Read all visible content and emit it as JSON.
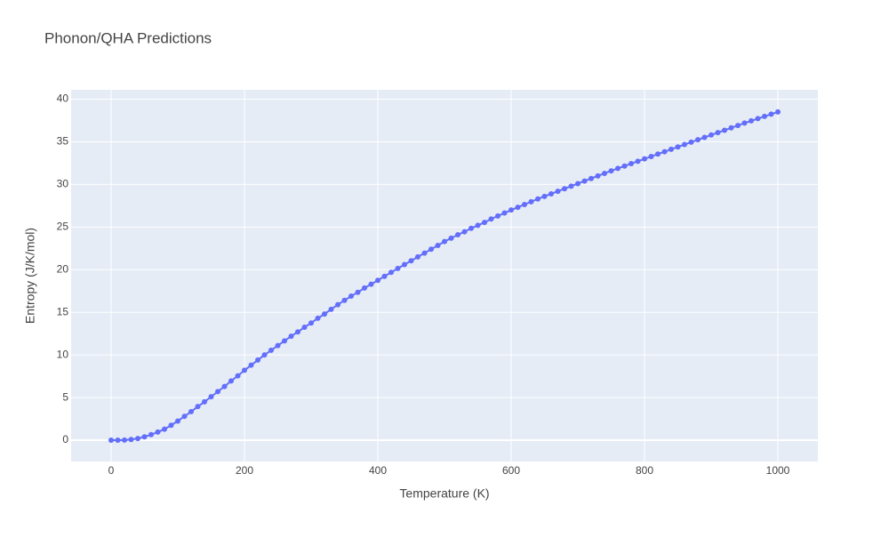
{
  "chart_data": {
    "type": "line",
    "title": "Phonon/QHA Predictions",
    "x_label": "Temperature (K)",
    "y_label": "Entropy (J/K/mol)",
    "x": [
      0,
      10,
      20,
      30,
      40,
      50,
      60,
      70,
      80,
      90,
      100,
      110,
      120,
      130,
      140,
      150,
      160,
      170,
      180,
      190,
      200,
      210,
      220,
      230,
      240,
      250,
      260,
      270,
      280,
      290,
      300,
      310,
      320,
      330,
      340,
      350,
      360,
      370,
      380,
      390,
      400,
      410,
      420,
      430,
      440,
      450,
      460,
      470,
      480,
      490,
      500,
      510,
      520,
      530,
      540,
      550,
      560,
      570,
      580,
      590,
      600,
      610,
      620,
      630,
      640,
      650,
      660,
      670,
      680,
      690,
      700,
      710,
      720,
      730,
      740,
      750,
      760,
      770,
      780,
      790,
      800,
      810,
      820,
      830,
      840,
      850,
      860,
      870,
      880,
      890,
      900,
      910,
      920,
      930,
      940,
      950,
      960,
      970,
      980,
      990,
      1000
    ],
    "series": [
      {
        "name": "Entropy",
        "color": "#636efa",
        "values": [
          0,
          0,
          0.02,
          0.08,
          0.2,
          0.4,
          0.65,
          0.95,
          1.3,
          1.75,
          2.25,
          2.8,
          3.35,
          3.95,
          4.5,
          5.1,
          5.7,
          6.3,
          6.95,
          7.55,
          8.2,
          8.8,
          9.4,
          10.0,
          10.55,
          11.1,
          11.65,
          12.2,
          12.7,
          13.25,
          13.75,
          14.3,
          14.8,
          15.35,
          15.9,
          16.4,
          16.9,
          17.35,
          17.85,
          18.3,
          18.75,
          19.22,
          19.69,
          20.15,
          20.6,
          21.05,
          21.5,
          21.95,
          22.4,
          22.85,
          23.3,
          23.7,
          24.1,
          24.45,
          24.85,
          25.2,
          25.55,
          25.95,
          26.3,
          26.65,
          27.0,
          27.32,
          27.65,
          27.97,
          28.3,
          28.6,
          28.9,
          29.2,
          29.5,
          29.8,
          30.1,
          30.4,
          30.7,
          31.0,
          31.3,
          31.6,
          31.88,
          32.16,
          32.44,
          32.72,
          33.0,
          33.28,
          33.56,
          33.84,
          34.12,
          34.4,
          34.68,
          34.96,
          35.24,
          35.52,
          35.8,
          36.08,
          36.36,
          36.64,
          36.92,
          37.2,
          37.46,
          37.72,
          37.98,
          38.24,
          38.5
        ]
      }
    ],
    "xlim": [
      -60,
      1060
    ],
    "ylim": [
      -2.5,
      41.1
    ],
    "xticks": [
      0,
      200,
      400,
      600,
      800,
      1000
    ],
    "yticks": [
      0,
      5,
      10,
      15,
      20,
      25,
      30,
      35,
      40
    ],
    "grid": true
  }
}
